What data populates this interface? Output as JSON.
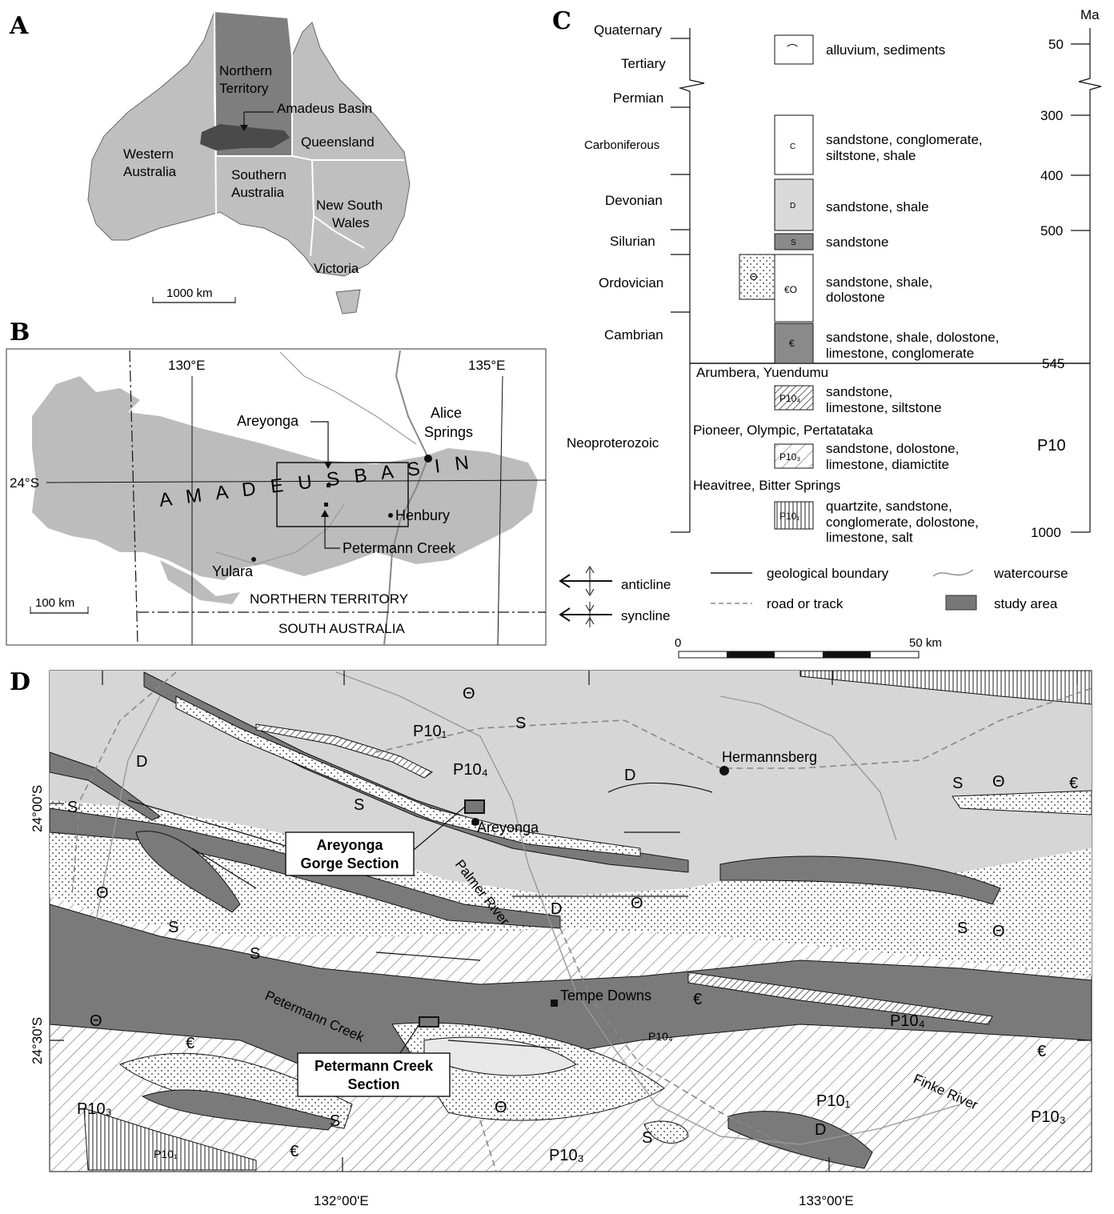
{
  "panels": {
    "a": "A",
    "b": "B",
    "c": "C",
    "d": "D"
  },
  "panel_a": {
    "states": [
      "Northern Territory",
      "Western Australia",
      "Queensland",
      "Southern Australia",
      "New South Wales",
      "Victoria"
    ],
    "basin_label": "Amadeus Basin",
    "scale": "1000 km"
  },
  "panel_b": {
    "lon1": "130°E",
    "lon2": "135°E",
    "lat": "24°S",
    "basin_name": "A M A D E U S   B A S I N",
    "areyonga": "Areyonga",
    "alice_springs": [
      "Alice",
      "Springs"
    ],
    "henbury": "Henbury",
    "petermann": "Petermann Creek",
    "yulara": "Yulara",
    "nt": "NORTHERN TERRITORY",
    "sa": "SOUTH AUSTRALIA",
    "scale": "100 km"
  },
  "panel_c": {
    "ma_label": "Ma",
    "periods": [
      "Quaternary",
      "Tertiary",
      "Permian",
      "Carboniferous",
      "Devonian",
      "Silurian",
      "Ordovician",
      "Cambrian",
      "Neoproterozoic"
    ],
    "ages": [
      "50",
      "300",
      "400",
      "500",
      "545",
      "1000"
    ],
    "p10": "P10",
    "units": [
      {
        "sym": "⌒",
        "desc": [
          "alluvium, sediments"
        ]
      },
      {
        "sym": "C",
        "desc": [
          "sandstone, conglomerate,",
          "siltstone, shale"
        ]
      },
      {
        "sym": "D",
        "desc": [
          "sandstone, shale"
        ]
      },
      {
        "sym": "S",
        "desc": [
          "sandstone"
        ]
      },
      {
        "sym": "€O",
        "desc": [
          "sandstone, shale,",
          "dolostone"
        ]
      },
      {
        "sym": "€",
        "desc": [
          "sandstone, shale, dolostone,",
          "limestone, conglomerate"
        ]
      },
      {
        "sym": "P10₄",
        "desc": [
          "sandstone,",
          "limestone, siltstone"
        ]
      },
      {
        "sym": "P10₃",
        "desc": [
          "sandstone, dolostone,",
          "limestone, diamictite"
        ]
      },
      {
        "sym": "P10₁",
        "desc": [
          "quartzite, sandstone,",
          "conglomerate, dolostone,",
          "limestone, salt"
        ]
      }
    ],
    "theta": "Θ",
    "groups": [
      "Arumbera, Yuendumu",
      "Pioneer, Olympic, Pertatataka",
      "Heavitree, Bitter Springs"
    ]
  },
  "legend": {
    "anticline": "anticline",
    "syncline": "syncline",
    "boundary": "geological boundary",
    "road": "road or track",
    "watercourse": "watercourse",
    "study_area": "study area",
    "scale0": "0",
    "scale50": "50 km"
  },
  "panel_d": {
    "lat1": "24°00'S",
    "lat2": "24°30'S",
    "lon1": "132°00'E",
    "lon2": "133°00'E",
    "hermannsberg": "Hermannsberg",
    "areyonga": "Areyonga",
    "tempe": "Tempe Downs",
    "palmer": "Palmer River",
    "petermann": "Petermann Creek",
    "finke": "Finke River",
    "areyonga_section": [
      "Areyonga",
      "Gorge Section"
    ],
    "petermann_section": [
      "Petermann Creek",
      "Section"
    ]
  }
}
